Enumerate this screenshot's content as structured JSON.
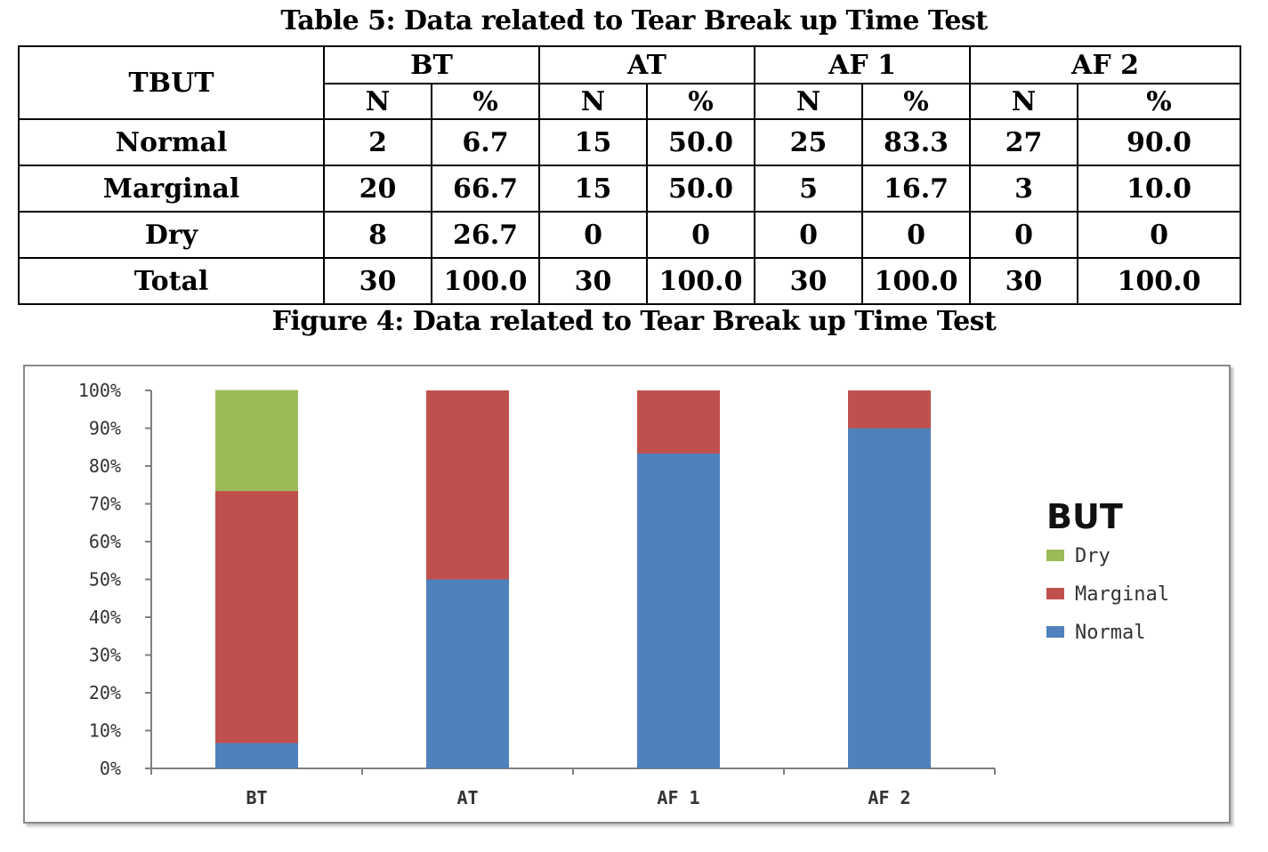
{
  "table": {
    "caption": "Table 5: Data related to Tear Break up Time Test",
    "row_header": "TBUT",
    "groups": [
      "BT",
      "AT",
      "AF 1",
      "AF 2"
    ],
    "subheaders": [
      "N",
      "%"
    ],
    "rows": [
      {
        "label": "Normal",
        "cells": [
          "2",
          "6.7",
          "15",
          "50.0",
          "25",
          "83.3",
          "27",
          "90.0"
        ]
      },
      {
        "label": "Marginal",
        "cells": [
          "20",
          "66.7",
          "15",
          "50.0",
          "5",
          "16.7",
          "3",
          "10.0"
        ]
      },
      {
        "label": "Dry",
        "cells": [
          "8",
          "26.7",
          "0",
          "0",
          "0",
          "0",
          "0",
          "0"
        ]
      },
      {
        "label": "Total",
        "cells": [
          "30",
          "100.0",
          "30",
          "100.0",
          "30",
          "100.0",
          "30",
          "100.0"
        ]
      }
    ]
  },
  "figure": {
    "caption": "Figure 4: Data related to Tear Break up Time Test"
  },
  "chart_data": {
    "type": "bar",
    "stacked": true,
    "percent_stacked": true,
    "categories": [
      "BT",
      "AT",
      "AF 1",
      "AF 2"
    ],
    "series": [
      {
        "name": "Normal",
        "values": [
          6.7,
          50.0,
          83.3,
          90.0
        ],
        "color": "#4f81bd"
      },
      {
        "name": "Marginal",
        "values": [
          66.7,
          50.0,
          16.7,
          10.0
        ],
        "color": "#c0504d"
      },
      {
        "name": "Dry",
        "values": [
          26.7,
          0,
          0,
          0
        ],
        "color": "#9bbb59"
      }
    ],
    "ylim": [
      0,
      100
    ],
    "y_ticks": [
      "0%",
      "10%",
      "20%",
      "30%",
      "40%",
      "50%",
      "60%",
      "70%",
      "80%",
      "90%",
      "100%"
    ],
    "legend": {
      "title": "BUT",
      "position": "right",
      "order": [
        "Dry",
        "Marginal",
        "Normal"
      ]
    },
    "grid": false
  }
}
